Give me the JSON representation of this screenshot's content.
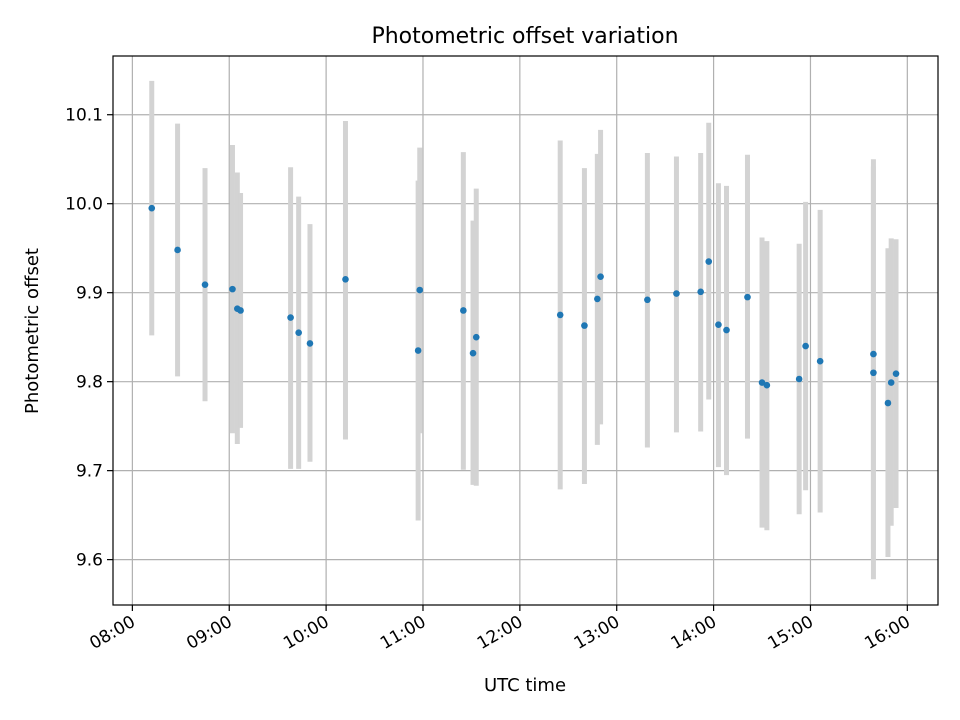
{
  "chart_data": {
    "type": "scatter",
    "title": "Photometric offset variation",
    "xlabel": "UTC time",
    "ylabel": "Photometric offset",
    "xlim": [
      "07:48",
      "16:19"
    ],
    "ylim": [
      9.549,
      10.166
    ],
    "x_ticks": [
      "08:00",
      "09:00",
      "10:00",
      "11:00",
      "12:00",
      "13:00",
      "14:00",
      "15:00",
      "16:00"
    ],
    "y_ticks": [
      9.6,
      9.7,
      9.8,
      9.9,
      10.0,
      10.1
    ],
    "y_tick_labels": [
      "9.6",
      "9.7",
      "9.8",
      "9.9",
      "10.0",
      "10.1"
    ],
    "grid": true,
    "colors": {
      "points": "#1f77b4",
      "errorbars": "#d3d3d3",
      "grid": "#b0b0b0"
    },
    "series": [
      {
        "points": [
          {
            "x": "08:12",
            "y": 9.995,
            "lo": 9.852,
            "hi": 10.138
          },
          {
            "x": "08:28",
            "y": 9.948,
            "lo": 9.806,
            "hi": 10.09
          },
          {
            "x": "08:45",
            "y": 9.909,
            "lo": 9.778,
            "hi": 10.04
          },
          {
            "x": "09:02",
            "y": 9.904,
            "lo": 9.742,
            "hi": 10.066
          },
          {
            "x": "09:05",
            "y": 9.882,
            "lo": 9.73,
            "hi": 10.035
          },
          {
            "x": "09:07",
            "y": 9.88,
            "lo": 9.748,
            "hi": 10.012
          },
          {
            "x": "09:38",
            "y": 9.872,
            "lo": 9.702,
            "hi": 10.041
          },
          {
            "x": "09:43",
            "y": 9.855,
            "lo": 9.702,
            "hi": 10.008
          },
          {
            "x": "09:50",
            "y": 9.843,
            "lo": 9.71,
            "hi": 9.977
          },
          {
            "x": "10:12",
            "y": 9.915,
            "lo": 9.735,
            "hi": 10.093
          },
          {
            "x": "10:57",
            "y": 9.835,
            "lo": 9.644,
            "hi": 10.026
          },
          {
            "x": "10:58",
            "y": 9.903,
            "lo": 9.742,
            "hi": 10.063
          },
          {
            "x": "11:25",
            "y": 9.88,
            "lo": 9.701,
            "hi": 10.058
          },
          {
            "x": "11:31",
            "y": 9.832,
            "lo": 9.684,
            "hi": 9.981
          },
          {
            "x": "11:33",
            "y": 9.85,
            "lo": 9.683,
            "hi": 10.017
          },
          {
            "x": "12:25",
            "y": 9.875,
            "lo": 9.679,
            "hi": 10.071
          },
          {
            "x": "12:40",
            "y": 9.863,
            "lo": 9.685,
            "hi": 10.04
          },
          {
            "x": "12:48",
            "y": 9.893,
            "lo": 9.729,
            "hi": 10.056
          },
          {
            "x": "12:50",
            "y": 9.918,
            "lo": 9.752,
            "hi": 10.083
          },
          {
            "x": "13:19",
            "y": 9.892,
            "lo": 9.726,
            "hi": 10.057
          },
          {
            "x": "13:37",
            "y": 9.899,
            "lo": 9.743,
            "hi": 10.053
          },
          {
            "x": "13:52",
            "y": 9.901,
            "lo": 9.744,
            "hi": 10.057
          },
          {
            "x": "13:57",
            "y": 9.935,
            "lo": 9.78,
            "hi": 10.091
          },
          {
            "x": "14:03",
            "y": 9.864,
            "lo": 9.704,
            "hi": 10.023
          },
          {
            "x": "14:08",
            "y": 9.858,
            "lo": 9.695,
            "hi": 10.02
          },
          {
            "x": "14:21",
            "y": 9.895,
            "lo": 9.736,
            "hi": 10.055
          },
          {
            "x": "14:30",
            "y": 9.799,
            "lo": 9.636,
            "hi": 9.962
          },
          {
            "x": "14:33",
            "y": 9.796,
            "lo": 9.633,
            "hi": 9.958
          },
          {
            "x": "14:53",
            "y": 9.803,
            "lo": 9.651,
            "hi": 9.955
          },
          {
            "x": "14:57",
            "y": 9.84,
            "lo": 9.678,
            "hi": 10.002
          },
          {
            "x": "15:06",
            "y": 9.823,
            "lo": 9.653,
            "hi": 9.993
          },
          {
            "x": "15:39",
            "y": 9.831,
            "lo": 9.611,
            "hi": 10.05
          },
          {
            "x": "15:39",
            "y": 9.81,
            "lo": 9.578,
            "hi": 10.042
          },
          {
            "x": "15:48",
            "y": 9.776,
            "lo": 9.603,
            "hi": 9.95
          },
          {
            "x": "15:50",
            "y": 9.799,
            "lo": 9.638,
            "hi": 9.961
          },
          {
            "x": "15:53",
            "y": 9.809,
            "lo": 9.658,
            "hi": 9.96
          }
        ]
      }
    ]
  }
}
